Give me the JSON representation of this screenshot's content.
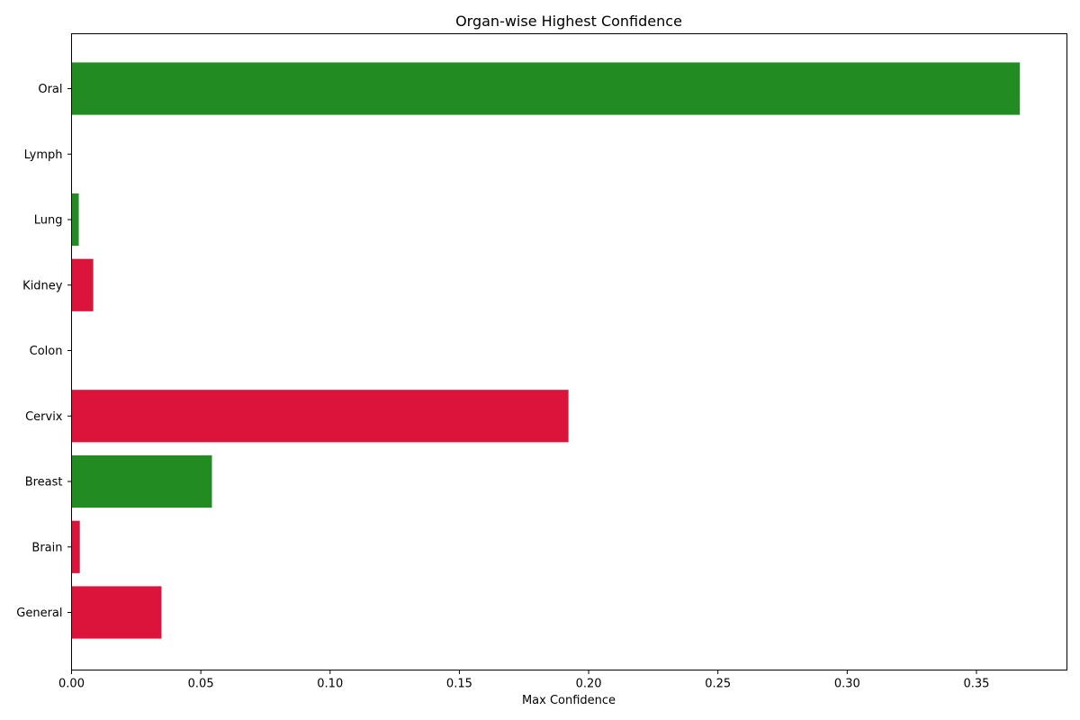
{
  "chart_data": {
    "type": "bar",
    "orientation": "horizontal",
    "title": "Organ-wise Highest Confidence",
    "xlabel": "Max Confidence",
    "ylabel": "",
    "categories": [
      "General",
      "Brain",
      "Breast",
      "Cervix",
      "Colon",
      "Kidney",
      "Lung",
      "Lymph",
      "Oral"
    ],
    "values": [
      0.0348,
      0.0032,
      0.0543,
      0.1922,
      0.0,
      0.0084,
      0.0028,
      0.0,
      0.3668
    ],
    "bar_colors": [
      "#dc143c",
      "#dc143c",
      "#228b22",
      "#dc143c",
      "#228b22",
      "#dc143c",
      "#228b22",
      "#228b22",
      "#228b22"
    ],
    "xlim": [
      0,
      0.385
    ],
    "xticks": [
      0.0,
      0.05,
      0.1,
      0.15,
      0.2,
      0.25,
      0.3,
      0.35
    ],
    "xtick_labels": [
      "0.00",
      "0.05",
      "0.10",
      "0.15",
      "0.20",
      "0.25",
      "0.30",
      "0.35"
    ],
    "grid": false,
    "legend": "none"
  }
}
